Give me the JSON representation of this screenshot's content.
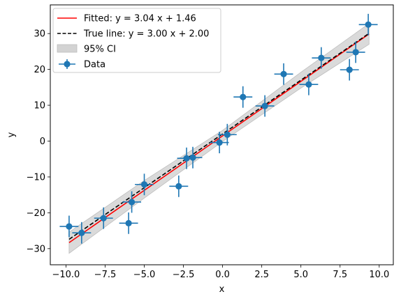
{
  "chart_data": {
    "type": "scatter",
    "title": "",
    "xlabel": "x",
    "ylabel": "y",
    "xlim": [
      -11.0,
      10.9
    ],
    "ylim": [
      -34.5,
      38.0
    ],
    "xticks": [
      -10.0,
      -7.5,
      -5.0,
      -2.5,
      0.0,
      2.5,
      5.0,
      7.5,
      10.0
    ],
    "xtick_labels": [
      "−10.0",
      "−7.5",
      "−5.0",
      "−2.5",
      "0.0",
      "2.5",
      "5.0",
      "7.5",
      "10.0"
    ],
    "yticks": [
      -30,
      -20,
      -10,
      0,
      10,
      20,
      30
    ],
    "ytick_labels": [
      "−30",
      "−20",
      "−10",
      "0",
      "10",
      "20",
      "30"
    ],
    "grid": false,
    "legend_position": "top-left",
    "legend": [
      {
        "label": "Fitted: y = 3.04 x + 1.46",
        "kind": "line",
        "color": "#ff0000"
      },
      {
        "label": "True line: y = 3.00 x + 2.00",
        "kind": "dashed",
        "color": "#000000"
      },
      {
        "label": "95% CI",
        "kind": "band",
        "color": "#d3d3d3"
      },
      {
        "label": "Data",
        "kind": "errorbar",
        "color": "#1f77b4"
      }
    ],
    "series": [
      {
        "name": "Fitted: y = 3.04 x + 1.46",
        "kind": "line",
        "color": "#ff0000",
        "x": [
          -9.8,
          9.35
        ],
        "y": [
          -28.33,
          29.88
        ]
      },
      {
        "name": "True line: y = 3.00 x + 2.00",
        "kind": "dashed",
        "color": "#000000",
        "x": [
          -9.8,
          9.35
        ],
        "y": [
          -27.4,
          30.05
        ]
      },
      {
        "name": "95% CI",
        "kind": "band",
        "color": "#d3d3d3",
        "x": [
          -9.8,
          -5.0,
          0.0,
          5.0,
          9.35
        ],
        "lower": [
          -31.3,
          -15.9,
          -0.1,
          14.8,
          27.0
        ],
        "upper": [
          -25.4,
          -11.0,
          3.0,
          19.2,
          32.8
        ]
      },
      {
        "name": "Data",
        "kind": "errorbar",
        "color": "#1f77b4",
        "xerr": 0.6,
        "yerr": 3.0,
        "points": [
          {
            "x": -9.8,
            "y": -23.8
          },
          {
            "x": -9.0,
            "y": -25.6
          },
          {
            "x": -7.6,
            "y": -21.5
          },
          {
            "x": -6.0,
            "y": -22.9
          },
          {
            "x": -5.8,
            "y": -17.0
          },
          {
            "x": -5.0,
            "y": -12.1
          },
          {
            "x": -2.8,
            "y": -12.6
          },
          {
            "x": -2.3,
            "y": -4.8
          },
          {
            "x": -1.9,
            "y": -4.6
          },
          {
            "x": -0.2,
            "y": -0.4
          },
          {
            "x": 0.3,
            "y": 1.8
          },
          {
            "x": 1.3,
            "y": 12.3
          },
          {
            "x": 2.7,
            "y": 9.8
          },
          {
            "x": 3.9,
            "y": 18.7
          },
          {
            "x": 5.5,
            "y": 15.8
          },
          {
            "x": 6.3,
            "y": 23.2
          },
          {
            "x": 8.1,
            "y": 19.9
          },
          {
            "x": 8.5,
            "y": 24.8
          },
          {
            "x": 9.3,
            "y": 32.5
          }
        ]
      }
    ]
  }
}
